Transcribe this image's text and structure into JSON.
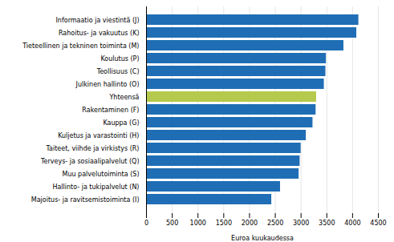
{
  "chart_data": {
    "type": "bar",
    "orientation": "horizontal",
    "categories": [
      "Majoitus- ja ravitsemistoiminta (I)",
      "Hallinto- ja tukipalvelut (N)",
      "Muu palvelutoiminta (S)",
      "Terveys- ja sosiaalipalvelut (Q)",
      "Taiteet, viihde ja virkistys (R)",
      "Kuljetus ja varastointi (H)",
      "Kauppa (G)",
      "Rakentaminen (F)",
      "Yhteensä",
      "Julkinen hallinto (O)",
      "Teollisuus (C)",
      "Koulutus (P)",
      "Tieteellinen ja tekninen toiminta (M)",
      "Rahoitus- ja vakuutus (K)",
      "Informaatio ja viestintä (J)"
    ],
    "values": [
      2430,
      2600,
      2960,
      2980,
      3000,
      3100,
      3230,
      3290,
      3300,
      3450,
      3480,
      3490,
      3830,
      4080,
      4120
    ],
    "colors": [
      "#1f6eb5",
      "#1f6eb5",
      "#1f6eb5",
      "#1f6eb5",
      "#1f6eb5",
      "#1f6eb5",
      "#1f6eb5",
      "#1f6eb5",
      "#b5c94c",
      "#1f6eb5",
      "#1f6eb5",
      "#1f6eb5",
      "#1f6eb5",
      "#1f6eb5",
      "#1f6eb5"
    ],
    "xlabel": "Euroa kuukaudessa",
    "xlim": [
      0,
      4500
    ],
    "xticks": [
      0,
      500,
      1000,
      1500,
      2000,
      2500,
      3000,
      3500,
      4000,
      4500
    ],
    "grid": true
  }
}
